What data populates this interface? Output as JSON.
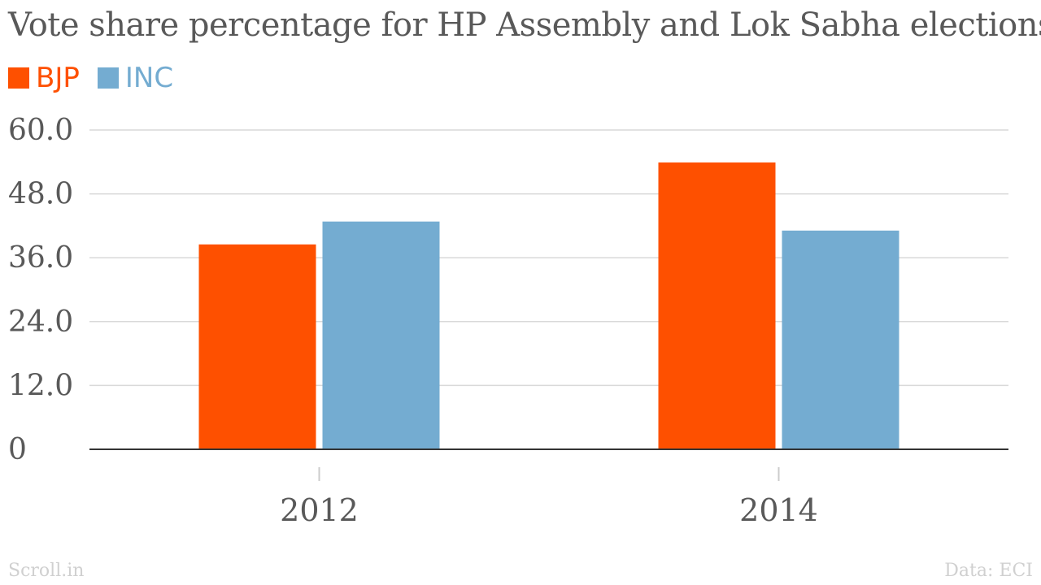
{
  "title": "Vote share percentage for HP Assembly and Lok Sabha elections",
  "legend": [
    {
      "name": "BJP",
      "color": "#fe5000"
    },
    {
      "name": "INC",
      "color": "#74acd1"
    }
  ],
  "footer": {
    "source_brand": "Scroll.in",
    "credit": "Data: ECI"
  },
  "chart_data": {
    "type": "bar",
    "categories": [
      "2012",
      "2014"
    ],
    "series": [
      {
        "name": "BJP",
        "color": "#fe5000",
        "values": [
          38.5,
          53.9
        ]
      },
      {
        "name": "INC",
        "color": "#74acd1",
        "values": [
          42.8,
          41.1
        ]
      }
    ],
    "ylim": [
      0,
      60
    ],
    "yticks": [
      "0",
      "12.0",
      "24.0",
      "36.0",
      "48.0",
      "60.0"
    ],
    "grid": true,
    "legend_position": "top-left",
    "xlabel": "",
    "ylabel": ""
  }
}
